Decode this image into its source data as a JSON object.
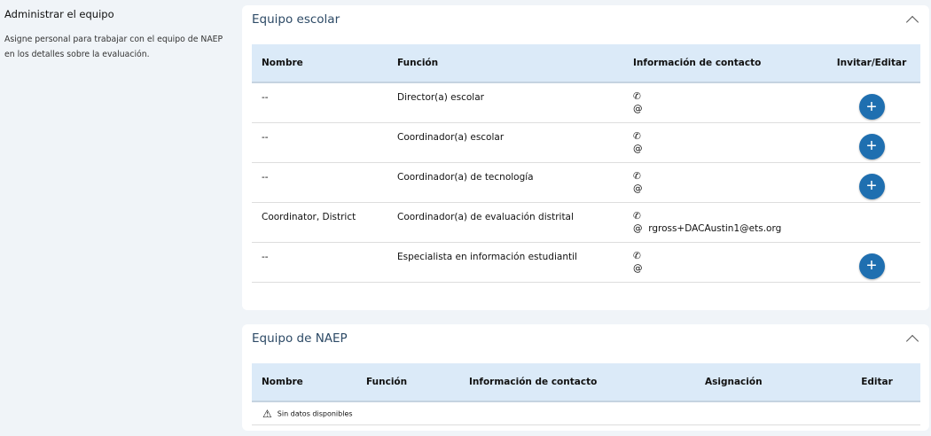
{
  "sidebar": {
    "title": "Administrar el equipo",
    "description": "Asigne personal para trabajar con el equipo de NAEP en los detalles sobre la evaluación."
  },
  "school_team": {
    "title": "Equipo escolar",
    "columns": [
      "Nombre",
      "Función",
      "Información de contacto",
      "Invitar/Editar"
    ],
    "rows": [
      {
        "name": "--",
        "role": "Director(a) escolar",
        "phone": "",
        "email": "",
        "invite": true
      },
      {
        "name": "--",
        "role": "Coordinador(a) escolar",
        "phone": "",
        "email": "",
        "invite": true
      },
      {
        "name": "--",
        "role": "Coordinador(a) de tecnología",
        "phone": "",
        "email": "",
        "invite": true
      },
      {
        "name": "Coordinator, District",
        "role": "Coordinador(a) de evaluación distrital",
        "phone": "",
        "email": "rgross+DACAustin1@ets.org",
        "invite": false
      },
      {
        "name": "--",
        "role": "Especialista en información estudiantil",
        "phone": "",
        "email": "",
        "invite": true
      }
    ],
    "phone_icon": "✆",
    "email_icon": "@",
    "plus_icon": "+"
  },
  "naep_team": {
    "title": "Equipo de NAEP",
    "columns": [
      "Nombre",
      "Función",
      "Información de contacto",
      "Asignación",
      "Editar"
    ],
    "empty_message": "Sin datos disponibles",
    "warning_icon": "⚠"
  },
  "colors": {
    "accent": "#1f6fb0",
    "header_bg": "#dbeaf8",
    "title": "#2d4a66"
  }
}
